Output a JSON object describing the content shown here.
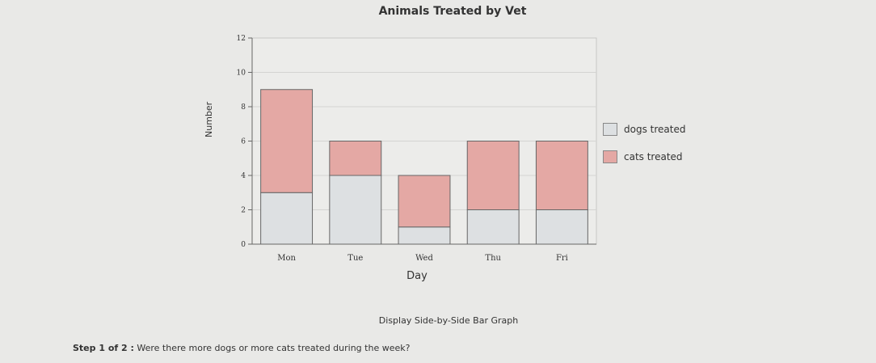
{
  "chart_data": {
    "type": "bar",
    "stacked": true,
    "title": "Animals Treated by Vet",
    "xlabel": "Day",
    "ylabel": "Number",
    "categories": [
      "Mon",
      "Tue",
      "Wed",
      "Thu",
      "Fri"
    ],
    "series": [
      {
        "name": "dogs treated",
        "values": [
          3,
          4,
          1,
          2,
          2
        ],
        "color": "#dde0e2"
      },
      {
        "name": "cats treated",
        "values": [
          6,
          2,
          3,
          4,
          4
        ],
        "color": "#e4a8a4"
      }
    ],
    "ylim": [
      0,
      12
    ],
    "yticks": [
      "0",
      "2",
      "4",
      "6",
      "8",
      "10",
      "12"
    ],
    "grid": true,
    "legend_position": "right"
  },
  "controls": {
    "toggle_label": "Display Side-by-Side Bar Graph"
  },
  "step": {
    "label": "Step 1 of 2 :",
    "question": "Were there more dogs or more cats treated during the week?"
  }
}
